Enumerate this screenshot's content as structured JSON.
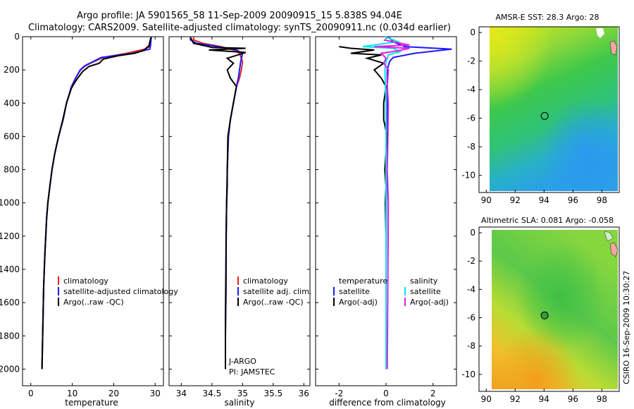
{
  "title": {
    "line1": "Argo profile: JA 5901565_58 11-Sep-2009 20090915_15 5.838S 94.04E",
    "line2": "Climatology: CARS2009. Satellite-adjusted climatology: synTS_20090911.nc (0.034d earlier)"
  },
  "colors": {
    "climatology": "#e8231f",
    "satellite": "#1a1aff",
    "argo": "#000000",
    "satellite_cyan": "#00e5ee",
    "argo_magenta": "#e020e0"
  },
  "chart_data": [
    {
      "type": "line",
      "name": "temperature-profile",
      "xlabel": "temperature",
      "ylabel": "",
      "xlim": [
        -2,
        32
      ],
      "ylim": [
        2100,
        0
      ],
      "xticks": [
        0,
        10,
        20,
        30
      ],
      "yticks": [
        0,
        200,
        400,
        600,
        800,
        1000,
        1200,
        1400,
        1600,
        1800,
        2000
      ],
      "legend": [
        "climatology",
        "satellite-adjusted climatology",
        "Argo(..raw -QC)"
      ],
      "series": [
        {
          "name": "climatology",
          "color_key": "climatology",
          "x": [
            29.0,
            28.9,
            28.6,
            27.5,
            23.0,
            17.5,
            15.2,
            13.2,
            12.0,
            10.8,
            9.8,
            8.6,
            7.8,
            6.7,
            5.8,
            5.1,
            4.6,
            4.1,
            3.8,
            3.4,
            3.1,
            2.9,
            2.7
          ],
          "y": [
            0,
            20,
            50,
            75,
            100,
            125,
            150,
            175,
            200,
            250,
            300,
            400,
            500,
            600,
            700,
            800,
            900,
            1000,
            1100,
            1300,
            1500,
            1750,
            2000
          ]
        },
        {
          "name": "satellite-adjusted climatology",
          "color_key": "satellite",
          "x": [
            29.1,
            29.0,
            28.9,
            28.7,
            24.5,
            17.0,
            15.0,
            13.0,
            11.9,
            10.8,
            9.8,
            8.6,
            7.8,
            6.7,
            5.8,
            5.1,
            4.6,
            4.1,
            3.8,
            3.4,
            3.1,
            2.9,
            2.7
          ],
          "y": [
            0,
            20,
            50,
            75,
            100,
            125,
            150,
            175,
            200,
            250,
            300,
            400,
            500,
            600,
            700,
            800,
            900,
            1000,
            1100,
            1300,
            1500,
            1750,
            2000
          ]
        },
        {
          "name": "Argo(..raw -QC)",
          "color_key": "argo",
          "x": [
            29.0,
            28.7,
            28.5,
            27.0,
            25.0,
            21.0,
            17.5,
            16.5,
            14.0,
            12.5,
            11.3,
            10.5,
            9.8,
            8.6,
            7.7,
            6.7,
            5.8,
            5.1,
            4.6,
            4.1,
            3.8,
            3.4,
            3.1,
            2.9,
            2.7
          ],
          "y": [
            5,
            30,
            60,
            85,
            100,
            115,
            135,
            160,
            180,
            210,
            250,
            280,
            310,
            400,
            500,
            600,
            700,
            800,
            900,
            1000,
            1100,
            1300,
            1500,
            1750,
            2000
          ]
        }
      ]
    },
    {
      "type": "line",
      "name": "salinity-profile",
      "xlabel": "salinity",
      "ylabel": "",
      "xlim": [
        33.8,
        36.1
      ],
      "ylim": [
        2100,
        0
      ],
      "xticks": [
        34,
        34.5,
        35,
        35.5,
        36
      ],
      "yticks": [
        0,
        200,
        400,
        600,
        800,
        1000,
        1200,
        1400,
        1600,
        1800,
        2000
      ],
      "legend": [
        "climatology",
        "satellite adj. clim.",
        "Argo(..raw -QC)"
      ],
      "annotations": [
        "J-ARGO",
        "PI: JAMSTEC"
      ],
      "series": [
        {
          "name": "climatology",
          "color_key": "climatology",
          "x": [
            34.2,
            34.2,
            34.35,
            34.65,
            34.85,
            34.95,
            35.0,
            34.98,
            34.95,
            34.9,
            34.85,
            34.8,
            34.77,
            34.76,
            34.75,
            34.75,
            34.74,
            34.73,
            34.73,
            34.72,
            34.72
          ],
          "y": [
            0,
            20,
            40,
            60,
            80,
            100,
            150,
            200,
            250,
            300,
            400,
            500,
            600,
            700,
            800,
            900,
            1000,
            1200,
            1500,
            1800,
            2000
          ]
        },
        {
          "name": "satellite adj. clim.",
          "color_key": "satellite",
          "x": [
            34.15,
            34.15,
            34.25,
            34.6,
            34.9,
            35.0,
            34.97,
            34.95,
            34.93,
            34.9,
            34.85,
            34.8,
            34.77,
            34.76,
            34.75,
            34.75,
            34.74,
            34.73,
            34.73,
            34.72,
            34.72
          ],
          "y": [
            0,
            20,
            40,
            60,
            80,
            100,
            150,
            200,
            250,
            300,
            400,
            500,
            600,
            700,
            800,
            900,
            1000,
            1200,
            1500,
            1800,
            2000
          ]
        },
        {
          "name": "Argo(..raw -QC)",
          "color_key": "argo",
          "x": [
            34.15,
            34.2,
            34.45,
            34.5,
            35.05,
            34.45,
            35.05,
            34.75,
            34.85,
            34.75,
            34.8,
            34.9,
            34.85,
            34.8,
            34.76,
            34.75,
            34.74,
            34.73,
            34.72,
            34.72
          ],
          "y": [
            5,
            40,
            60,
            65,
            70,
            80,
            95,
            130,
            160,
            200,
            250,
            300,
            400,
            500,
            600,
            800,
            1000,
            1300,
            1700,
            2000
          ]
        }
      ]
    },
    {
      "type": "line",
      "name": "difference-profile",
      "xlabel": "difference from climatology",
      "ylabel": "",
      "xlim": [
        -3,
        3
      ],
      "ylim": [
        2100,
        0
      ],
      "xticks": [
        -2,
        0,
        2
      ],
      "yticks": [
        0,
        200,
        400,
        600,
        800,
        1000,
        1200,
        1400,
        1600,
        1800,
        2000
      ],
      "legend": [
        "temperature",
        "satellite",
        "Argo(-adj)",
        "salinity",
        "satellite",
        "Argo(-adj)"
      ],
      "series": [
        {
          "name": "temperature satellite",
          "color_key": "satellite",
          "x": [
            0.1,
            0.3,
            0.8,
            2.8,
            1.2,
            0.3,
            0.15,
            0.05,
            0.05,
            0.02,
            0.0,
            0.0
          ],
          "y": [
            0,
            30,
            60,
            75,
            100,
            125,
            150,
            200,
            400,
            800,
            1400,
            2000
          ]
        },
        {
          "name": "temperature Argo(-adj)",
          "color_key": "argo",
          "x": [
            -2.0,
            -1.5,
            -0.5,
            -1.5,
            -0.2,
            -0.8,
            -0.1,
            -0.5,
            -0.2,
            0.0,
            -0.1,
            -0.1,
            0.05,
            -0.05,
            0.0,
            -0.03,
            0.0,
            0.0
          ],
          "y": [
            60,
            70,
            80,
            100,
            110,
            130,
            160,
            200,
            250,
            300,
            400,
            500,
            600,
            800,
            900,
            1000,
            1200,
            2000
          ]
        },
        {
          "name": "salinity satellite",
          "color_key": "satellite_cyan",
          "x": [
            -0.05,
            0.5,
            -1.0,
            0.3,
            0.6,
            0.1,
            0.0,
            -0.05,
            0.0,
            0.0,
            0.0,
            0.0
          ],
          "y": [
            0,
            30,
            60,
            70,
            90,
            110,
            150,
            200,
            400,
            800,
            1400,
            2000
          ]
        },
        {
          "name": "salinity Argo(-adj)",
          "color_key": "argo_magenta",
          "x": [
            -0.1,
            1.0,
            -0.5,
            1.0,
            0.5,
            -0.2,
            0.0,
            -0.1,
            0.1,
            0.05,
            0.1,
            0.08,
            0.05,
            0.1,
            0.08,
            0.05
          ],
          "y": [
            20,
            50,
            60,
            70,
            85,
            100,
            130,
            160,
            200,
            300,
            400,
            600,
            800,
            1000,
            1400,
            2000
          ]
        }
      ]
    },
    {
      "type": "heatmap",
      "name": "sst-map",
      "title": "AMSR-E SST: 28.3 Argo: 28",
      "xlim": [
        89.5,
        99.2
      ],
      "ylim": [
        -11.2,
        0.4
      ],
      "xticks": [
        90,
        92,
        94,
        96,
        98
      ],
      "yticks": [
        0,
        -2,
        -4,
        -6,
        -8,
        -10
      ],
      "marker": {
        "lon": 94.04,
        "lat": -5.838
      }
    },
    {
      "type": "heatmap",
      "name": "sla-map",
      "title": "Altimetric SLA: 0.081 Argo: -0.058",
      "xlim": [
        89.5,
        99.2
      ],
      "ylim": [
        -11.2,
        0.4
      ],
      "xticks": [
        90,
        92,
        94,
        96,
        98
      ],
      "yticks": [
        0,
        -2,
        -4,
        -6,
        -8,
        -10
      ],
      "marker": {
        "lon": 94.04,
        "lat": -5.838
      }
    }
  ],
  "side_label": "CSIRO 16-Sep-2009 10:30:27"
}
